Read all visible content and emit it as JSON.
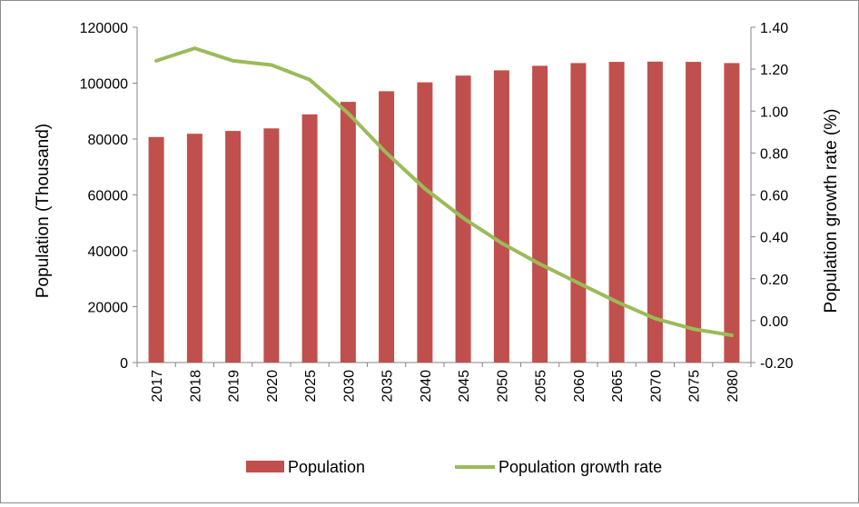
{
  "chart_data": {
    "type": "bar",
    "title": "",
    "categories": [
      "2017",
      "2018",
      "2019",
      "2020",
      "2025",
      "2030",
      "2035",
      "2040",
      "2045",
      "2050",
      "2055",
      "2060",
      "2065",
      "2070",
      "2075",
      "2080"
    ],
    "series": [
      {
        "name": "Population",
        "type": "bar",
        "axis": "left",
        "color": "#c0504d",
        "values": [
          80700,
          81900,
          82900,
          83800,
          88800,
          93300,
          97100,
          100300,
          102700,
          104600,
          106200,
          107200,
          107600,
          107700,
          107600,
          107200
        ]
      },
      {
        "name": "Population growth rate",
        "type": "line",
        "axis": "right",
        "color": "#9bbb59",
        "values": [
          1.24,
          1.3,
          1.24,
          1.22,
          1.15,
          0.99,
          0.8,
          0.63,
          0.49,
          0.37,
          0.27,
          0.18,
          0.09,
          0.01,
          -0.04,
          -0.07
        ]
      }
    ],
    "ylabel": "Population  (Thousand)",
    "ylim": [
      0,
      120000
    ],
    "yticks": [
      "0",
      "20000",
      "40000",
      "60000",
      "80000",
      "100000",
      "120000"
    ],
    "y2label": "Population growth rate (%)",
    "y2lim": [
      -0.2,
      1.4
    ],
    "y2ticks": [
      "-0.20",
      "0.00",
      "0.20",
      "0.40",
      "0.60",
      "0.80",
      "1.00",
      "1.20",
      "1.40"
    ],
    "xlabel": "",
    "grid": false,
    "legend_position": "bottom"
  }
}
